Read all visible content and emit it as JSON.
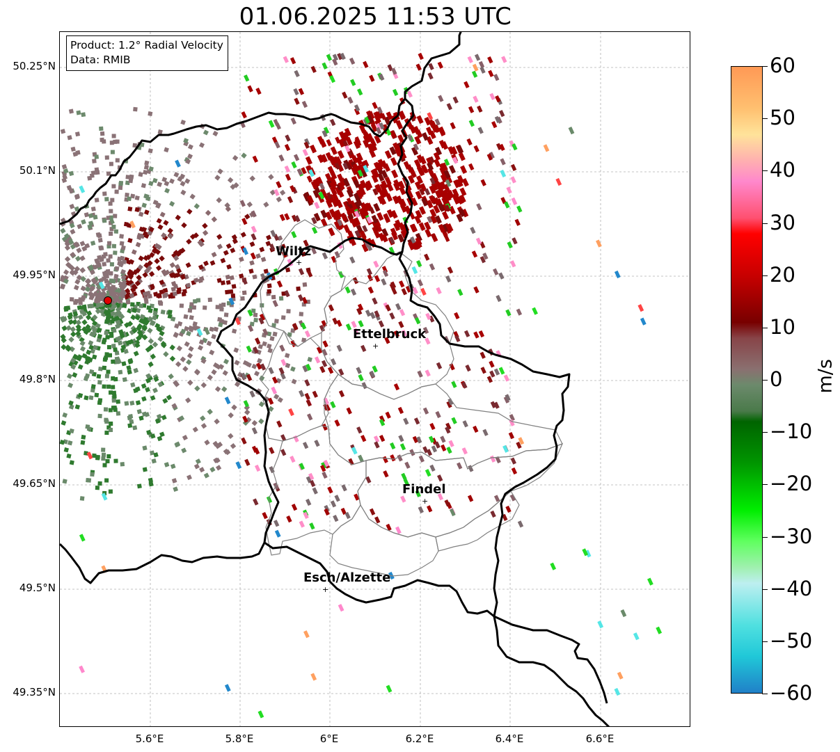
{
  "title": "01.06.2025 11:53 UTC",
  "info_box": {
    "line1": "Product: 1.2° Radial Velocity",
    "line2": "Data: RMIB"
  },
  "axes": {
    "lat_ticks": [
      "50.25°N",
      "50.1°N",
      "49.95°N",
      "49.8°N",
      "49.65°N",
      "49.5°N",
      "49.35°N"
    ],
    "lon_ticks": [
      "5.6°E",
      "5.8°E",
      "6°E",
      "6.2°E",
      "6.4°E",
      "6.6°E"
    ]
  },
  "cities": [
    {
      "name": "Wiltz"
    },
    {
      "name": "Ettelbruck"
    },
    {
      "name": "Findel"
    },
    {
      "name": "Esch/Alzette"
    }
  ],
  "radar_marker": {
    "color": "#e00000"
  },
  "colorbar": {
    "unit": "m/s",
    "ticks": [
      "60",
      "50",
      "40",
      "30",
      "20",
      "10",
      "0",
      "−10",
      "−20",
      "−30",
      "−40",
      "−50",
      "−60"
    ],
    "range": [
      -60,
      60
    ],
    "gradient_stops": [
      {
        "v": 60,
        "c": "#ff9955"
      },
      {
        "v": 52,
        "c": "#ffc070"
      },
      {
        "v": 47,
        "c": "#ffe39a"
      },
      {
        "v": 42,
        "c": "#ffb0b0"
      },
      {
        "v": 38,
        "c": "#ff88cc"
      },
      {
        "v": 31,
        "c": "#ff5070"
      },
      {
        "v": 28,
        "c": "#ff0000"
      },
      {
        "v": 20,
        "c": "#c80000"
      },
      {
        "v": 11,
        "c": "#780000"
      },
      {
        "v": 8,
        "c": "#884448"
      },
      {
        "v": 2,
        "c": "#8a7070"
      },
      {
        "v": -1,
        "c": "#6c8a6c"
      },
      {
        "v": -6,
        "c": "#4a7a4a"
      },
      {
        "v": -8,
        "c": "#006400"
      },
      {
        "v": -16,
        "c": "#009600"
      },
      {
        "v": -25,
        "c": "#00ee00"
      },
      {
        "v": -31,
        "c": "#60ff60"
      },
      {
        "v": -36,
        "c": "#a0f0b0"
      },
      {
        "v": -39,
        "c": "#bdeff0"
      },
      {
        "v": -47,
        "c": "#50e0e0"
      },
      {
        "v": -53,
        "c": "#20c8d8"
      },
      {
        "v": -60,
        "c": "#2080c8"
      }
    ]
  }
}
